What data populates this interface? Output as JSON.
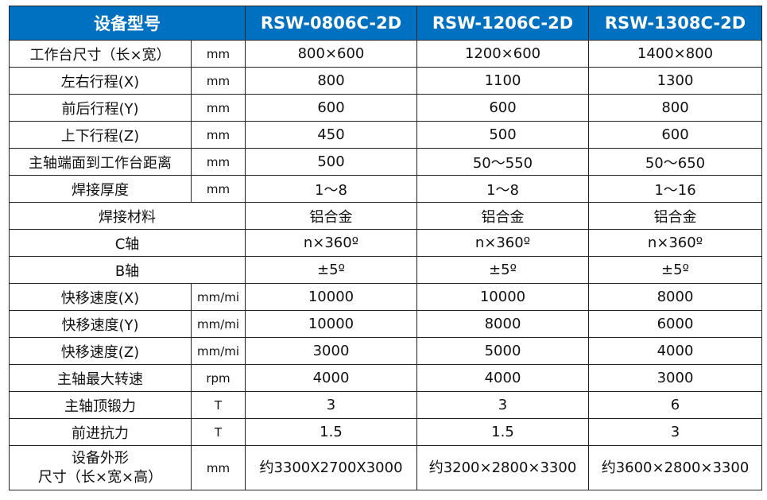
{
  "header": {
    "label": "设备型号",
    "models": [
      "RSW-0806C-2D",
      "RSW-1206C-2D",
      "RSW-1308C-2D"
    ]
  },
  "colors": {
    "header_bg": "#0070c0",
    "header_text": "#ffffff"
  },
  "rows": [
    {
      "name": "工作台尺寸（长×宽）",
      "unit": "mm",
      "values": [
        "800×600",
        "1200×600",
        "1400×800"
      ]
    },
    {
      "name": "左右行程(X)",
      "unit": "mm",
      "values": [
        "800",
        "1100",
        "1300"
      ]
    },
    {
      "name": "前后行程(Y)",
      "unit": "mm",
      "values": [
        "600",
        "600",
        "800"
      ]
    },
    {
      "name": "上下行程(Z)",
      "unit": "mm",
      "values": [
        "450",
        "500",
        "600"
      ]
    },
    {
      "name": "主轴端面到工作台距离",
      "unit": "mm",
      "values": [
        "500",
        "50～550",
        "50～650"
      ]
    },
    {
      "name": "焊接厚度",
      "unit": "mm",
      "values": [
        "1～8",
        "1～8",
        "1～16"
      ]
    },
    {
      "name": "焊接材料",
      "unit": null,
      "values": [
        "铝合金",
        "铝合金",
        "铝合金"
      ]
    },
    {
      "name": "C轴",
      "unit": null,
      "values": [
        "n×360º",
        "n×360º",
        "n×360º"
      ]
    },
    {
      "name": "B轴",
      "unit": null,
      "values": [
        "±5º",
        "±5º",
        "±5º"
      ]
    },
    {
      "name": "快移速度(X)",
      "unit": "mm/mi",
      "values": [
        "10000",
        "10000",
        "8000"
      ]
    },
    {
      "name": "快移速度(Y)",
      "unit": "mm/mi",
      "values": [
        "10000",
        "8000",
        "6000"
      ]
    },
    {
      "name": "快移速度(Z)",
      "unit": "mm/mi",
      "values": [
        "3000",
        "5000",
        "4000"
      ]
    },
    {
      "name": "主轴最大转速",
      "unit": "rpm",
      "values": [
        "4000",
        "4000",
        "3000"
      ]
    },
    {
      "name": "主轴顶锻力",
      "unit": "T",
      "values": [
        "3",
        "3",
        "6"
      ]
    },
    {
      "name": "前进抗力",
      "unit": "T",
      "values": [
        "1.5",
        "1.5",
        "3"
      ]
    }
  ],
  "last_row": {
    "name_line1": "设备外形",
    "name_line2": "尺寸（长×宽×高）",
    "unit": "mm",
    "values": [
      "约3300X2700X3000",
      "约3200×2800×3300",
      "约3600×2800×3300"
    ]
  }
}
